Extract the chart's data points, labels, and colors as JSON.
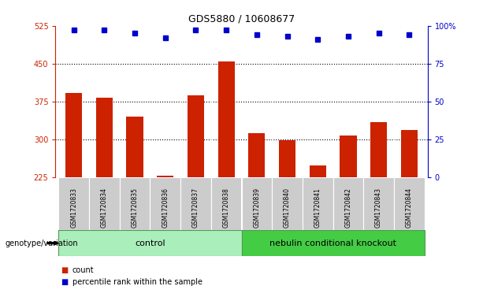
{
  "title": "GDS5880 / 10608677",
  "samples": [
    "GSM1720833",
    "GSM1720834",
    "GSM1720835",
    "GSM1720836",
    "GSM1720837",
    "GSM1720838",
    "GSM1720839",
    "GSM1720840",
    "GSM1720841",
    "GSM1720842",
    "GSM1720843",
    "GSM1720844"
  ],
  "counts": [
    392,
    382,
    345,
    228,
    388,
    455,
    312,
    298,
    248,
    307,
    335,
    318
  ],
  "percentiles": [
    97,
    97,
    95,
    92,
    97,
    97,
    94,
    93,
    91,
    93,
    95,
    94
  ],
  "ylim_left": [
    225,
    525
  ],
  "yticks_left": [
    225,
    300,
    375,
    450,
    525
  ],
  "ylim_right": [
    0,
    100
  ],
  "yticks_right": [
    0,
    25,
    50,
    75,
    100
  ],
  "bar_color": "#cc2200",
  "dot_color": "#0000cc",
  "background_color": "#ffffff",
  "sample_bg_color": "#cccccc",
  "control_color": "#aaeebb",
  "knockout_color": "#44cc44",
  "control_label": "control",
  "knockout_label": "nebulin conditional knockout",
  "control_count": 6,
  "knockout_count": 6,
  "genotype_label": "genotype/variation",
  "legend_count": "count",
  "legend_percentile": "percentile rank within the sample",
  "bar_width": 0.55,
  "grid_yticks": [
    300,
    375,
    450
  ]
}
